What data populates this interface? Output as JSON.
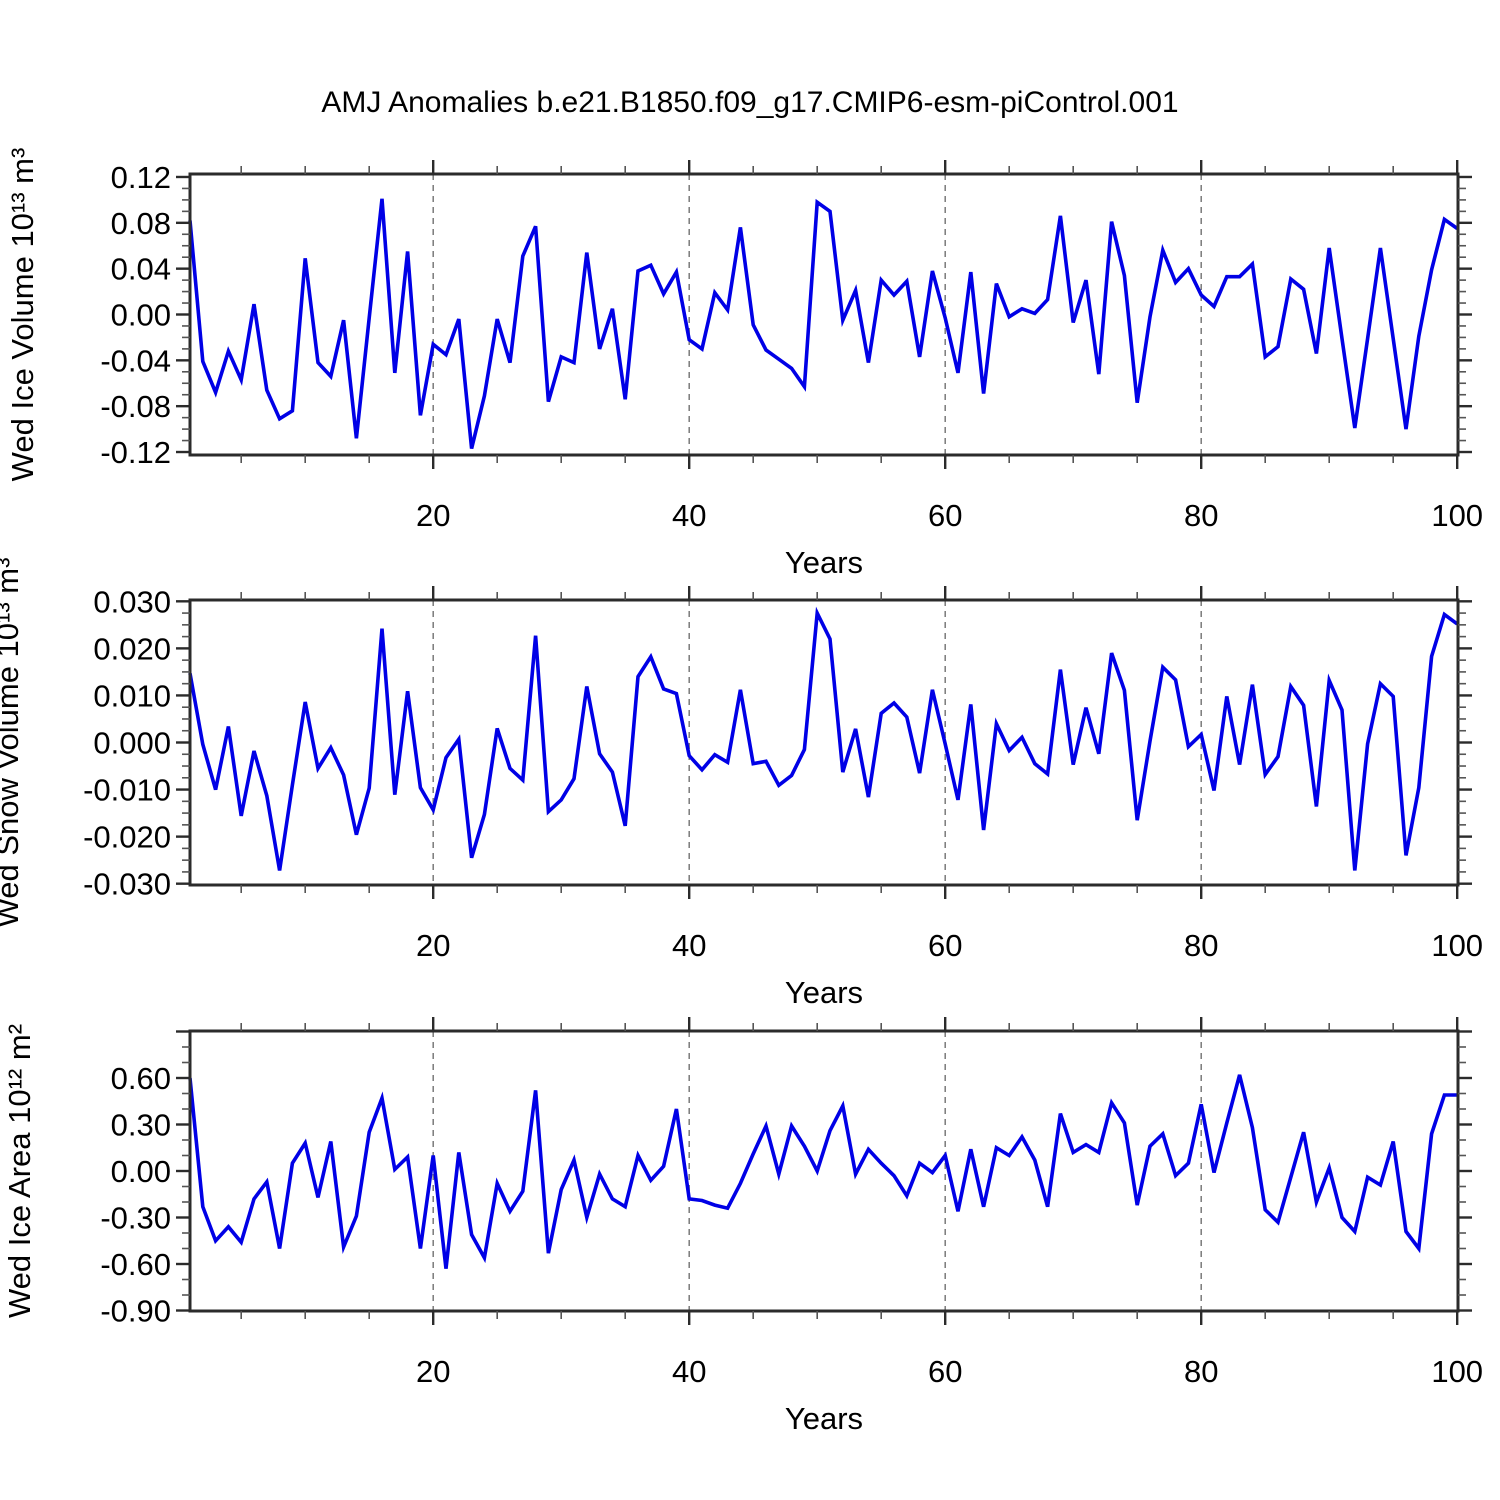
{
  "title": "AMJ Anomalies b.e21.B1850.f09_g17.CMIP6-esm-piControl.001",
  "style": {
    "line_color": "#0000E6",
    "axis_color": "#2b2b2b",
    "minor_tick_color": "#555555",
    "grid_color": "#7a7a7a",
    "text_color": "#000000",
    "background": "#ffffff"
  },
  "chart_data": [
    {
      "type": "line",
      "ylabel": "Wed Ice Volume 10¹³ m³",
      "xlabel": "Years",
      "x_start": 1,
      "x_end": 100,
      "xlim": [
        1,
        100
      ],
      "ylim": [
        -0.1226,
        0.1226
      ],
      "xticks": {
        "major": [
          20,
          40,
          60,
          80,
          100
        ],
        "labels": [
          "20",
          "40",
          "60",
          "80",
          "100"
        ],
        "minor_step": 5
      },
      "yticks": {
        "major": [
          0.12,
          0.08,
          0.04,
          0.0,
          -0.04,
          -0.08,
          -0.12
        ],
        "labels": [
          "0.12",
          "0.08",
          "0.04",
          "0.00",
          "-0.04",
          "-0.08",
          "-0.12"
        ],
        "minor_step": 0.01,
        "unlabeled_major": []
      },
      "gridlines_x": [
        20,
        40,
        60,
        80
      ],
      "grid": true,
      "legend": null,
      "values": [
        0.082,
        -0.041,
        -0.068,
        -0.032,
        -0.057,
        0.009,
        -0.066,
        -0.091,
        -0.084,
        0.049,
        -0.042,
        -0.054,
        -0.005,
        -0.108,
        -0.003,
        0.101,
        -0.051,
        0.055,
        -0.088,
        -0.026,
        -0.035,
        -0.004,
        -0.117,
        -0.071,
        -0.004,
        -0.042,
        0.051,
        0.077,
        -0.076,
        -0.037,
        -0.042,
        0.054,
        -0.03,
        0.005,
        -0.074,
        0.038,
        0.043,
        0.018,
        0.037,
        -0.022,
        -0.03,
        0.019,
        0.004,
        0.076,
        -0.009,
        -0.031,
        -0.039,
        -0.047,
        -0.063,
        0.098,
        0.09,
        -0.005,
        0.021,
        -0.042,
        0.03,
        0.017,
        0.029,
        -0.037,
        0.038,
        -0.003,
        -0.051,
        0.037,
        -0.069,
        0.027,
        -0.002,
        0.005,
        0.001,
        0.013,
        0.086,
        -0.007,
        0.03,
        -0.052,
        0.081,
        0.034,
        -0.077,
        -0.002,
        0.056,
        0.028,
        0.04,
        0.017,
        0.007,
        0.033,
        0.033,
        0.044,
        -0.037,
        -0.028,
        0.031,
        0.022,
        -0.034,
        0.058,
        -0.021,
        -0.099,
        -0.021,
        0.058,
        -0.021,
        -0.1,
        -0.019,
        0.039,
        0.083,
        0.075
      ]
    },
    {
      "type": "line",
      "ylabel": "Wed Snow Volume 10¹³ m³",
      "xlabel": "Years",
      "x_start": 1,
      "x_end": 100,
      "xlim": [
        1,
        100
      ],
      "ylim": [
        -0.03028,
        0.03028
      ],
      "xticks": {
        "major": [
          20,
          40,
          60,
          80,
          100
        ],
        "labels": [
          "20",
          "40",
          "60",
          "80",
          "100"
        ],
        "minor_step": 5
      },
      "yticks": {
        "major": [
          0.03,
          0.02,
          0.01,
          0.0,
          -0.01,
          -0.02,
          -0.03
        ],
        "labels": [
          "0.030",
          "0.020",
          "0.010",
          "0.000",
          "-0.010",
          "-0.020",
          "-0.030"
        ],
        "minor_step": 0.0025,
        "unlabeled_major": []
      },
      "gridlines_x": [
        20,
        40,
        60,
        80
      ],
      "grid": true,
      "legend": null,
      "values": [
        0.0147,
        -0.0004,
        -0.01,
        0.0034,
        -0.0156,
        -0.0018,
        -0.0113,
        -0.0272,
        -0.009,
        0.0086,
        -0.0055,
        -0.0011,
        -0.0069,
        -0.0196,
        -0.0097,
        0.0242,
        -0.0111,
        0.0109,
        -0.0096,
        -0.0143,
        -0.0032,
        0.0007,
        -0.0245,
        -0.0153,
        0.003,
        -0.0055,
        -0.008,
        0.0227,
        -0.0147,
        -0.0122,
        -0.0077,
        0.0119,
        -0.0024,
        -0.0063,
        -0.0177,
        0.014,
        0.0182,
        0.0114,
        0.0104,
        -0.0028,
        -0.0058,
        -0.0026,
        -0.0042,
        0.0112,
        -0.0045,
        -0.004,
        -0.0091,
        -0.007,
        -0.0015,
        0.0275,
        0.022,
        -0.0063,
        0.0029,
        -0.0116,
        0.0062,
        0.0084,
        0.0054,
        -0.0065,
        0.0112,
        -0.0003,
        -0.0122,
        0.0081,
        -0.0186,
        0.004,
        -0.0017,
        0.0011,
        -0.0045,
        -0.0067,
        0.0155,
        -0.0047,
        0.0074,
        -0.0024,
        0.019,
        0.0111,
        -0.0165,
        0.0003,
        0.016,
        0.0133,
        -0.0009,
        0.0017,
        -0.0102,
        0.0098,
        -0.0047,
        0.0123,
        -0.0068,
        -0.003,
        0.0119,
        0.0079,
        -0.0136,
        0.0132,
        0.0069,
        -0.0272,
        -0.0003,
        0.0125,
        0.0098,
        -0.024,
        -0.0096,
        0.0183,
        0.0272,
        0.0252
      ]
    },
    {
      "type": "line",
      "ylabel": "Wed Ice Area 10¹² m²",
      "xlabel": "Years",
      "x_start": 1,
      "x_end": 100,
      "xlim": [
        1,
        100
      ],
      "ylim": [
        -0.9032,
        0.9032
      ],
      "xticks": {
        "major": [
          20,
          40,
          60,
          80,
          100
        ],
        "labels": [
          "20",
          "40",
          "60",
          "80",
          "100"
        ],
        "minor_step": 5
      },
      "yticks": {
        "major": [
          0.6,
          0.3,
          0.0,
          -0.3,
          -0.6,
          -0.9
        ],
        "labels": [
          "0.60",
          "0.30",
          "0.00",
          "-0.30",
          "-0.60",
          "-0.90"
        ],
        "minor_step": 0.1,
        "unlabeled_major": [
          0.9
        ]
      },
      "gridlines_x": [
        20,
        40,
        60,
        80
      ],
      "grid": true,
      "legend": null,
      "values": [
        0.6,
        -0.23,
        -0.45,
        -0.36,
        -0.46,
        -0.18,
        -0.07,
        -0.5,
        0.05,
        0.18,
        -0.17,
        0.19,
        -0.49,
        -0.29,
        0.25,
        0.47,
        0.01,
        0.09,
        -0.5,
        0.1,
        -0.63,
        0.12,
        -0.41,
        -0.56,
        -0.08,
        -0.26,
        -0.13,
        0.52,
        -0.53,
        -0.12,
        0.07,
        -0.3,
        -0.02,
        -0.18,
        -0.23,
        0.1,
        -0.06,
        0.03,
        0.4,
        -0.18,
        -0.19,
        -0.22,
        -0.24,
        -0.08,
        0.11,
        0.29,
        -0.02,
        0.29,
        0.16,
        0.0,
        0.26,
        0.42,
        -0.02,
        0.14,
        0.05,
        -0.03,
        -0.16,
        0.05,
        -0.01,
        0.1,
        -0.26,
        0.14,
        -0.23,
        0.15,
        0.1,
        0.22,
        0.07,
        -0.23,
        0.37,
        0.12,
        0.17,
        0.12,
        0.44,
        0.31,
        -0.22,
        0.16,
        0.24,
        -0.03,
        0.05,
        0.43,
        -0.01,
        0.31,
        0.62,
        0.28,
        -0.25,
        -0.33,
        -0.04,
        0.25,
        -0.2,
        0.02,
        -0.3,
        -0.39,
        -0.04,
        -0.09,
        0.19,
        -0.39,
        -0.5,
        0.24,
        0.49,
        0.49
      ]
    }
  ]
}
